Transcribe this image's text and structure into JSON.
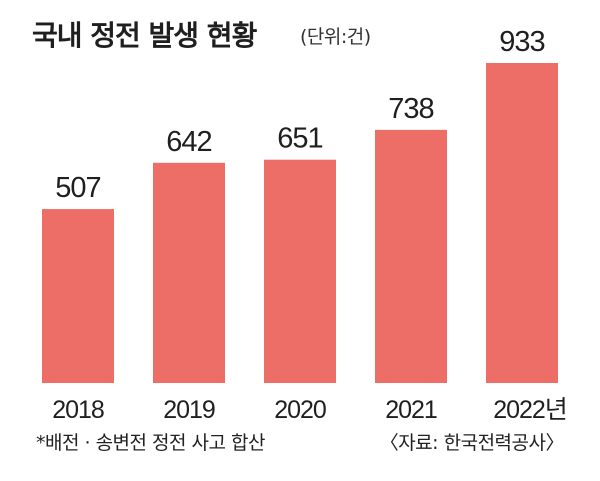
{
  "header": {
    "title": "국내 정전 발생 현황",
    "unit": "(단위:건)"
  },
  "footer": {
    "note": "*배전 · 송변전 정전 사고 합산",
    "source": "〈자료: 한국전력공사〉"
  },
  "colors": {
    "bar": "#ec6e66",
    "text": "#1f1f1f",
    "background": "#ffffff"
  },
  "chart_data": {
    "type": "bar",
    "title": "국내 정전 발생 현황",
    "unit": "(단위:건)",
    "categories": [
      "2018",
      "2019",
      "2020",
      "2021",
      "2022년"
    ],
    "values": [
      507,
      642,
      651,
      738,
      933
    ],
    "data_labels": [
      "507",
      "642",
      "651",
      "738",
      "933"
    ],
    "ylim": [
      0,
      1000
    ],
    "grid": false,
    "legend": "none"
  }
}
